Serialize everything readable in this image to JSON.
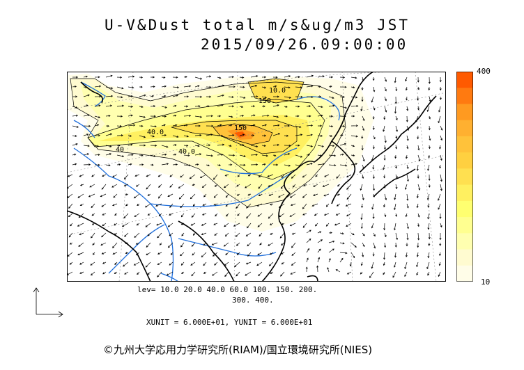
{
  "header": {
    "title": "U-V&Dust total m/s&ug/m3 JST",
    "timestamp": "2015/09/26.09:00:00"
  },
  "colorbar": {
    "max_label": "400",
    "min_label": "10",
    "colors": [
      "#ff5a00",
      "#ff7a10",
      "#ff9a20",
      "#ffb030",
      "#ffc23a",
      "#ffd040",
      "#ffe050",
      "#fff060",
      "#ffff70",
      "#ffff90",
      "#ffffb0",
      "#fffbd0",
      "#fffde8"
    ]
  },
  "legend": {
    "levels_line1": "lev= 10.0 20.0 40.0 60.0 100. 150. 200.",
    "levels_line2": "300. 400.",
    "units_line": "XUNIT = 6.000E+01, YUNIT = 6.000E+01"
  },
  "contour_labels": {
    "l40a": "40.0",
    "l40b": "40.0",
    "l150a": "150",
    "l150b": "150.",
    "l10": "10.0",
    "l40c": "40"
  },
  "copyright": "©九州大学応用力学研究所(RIAM)/国立環境研究所(NIES)",
  "colors": {
    "coast": "#000000",
    "rivers": "#1f6fdc",
    "grid": "#888888",
    "dust_high": "#e8400a"
  }
}
